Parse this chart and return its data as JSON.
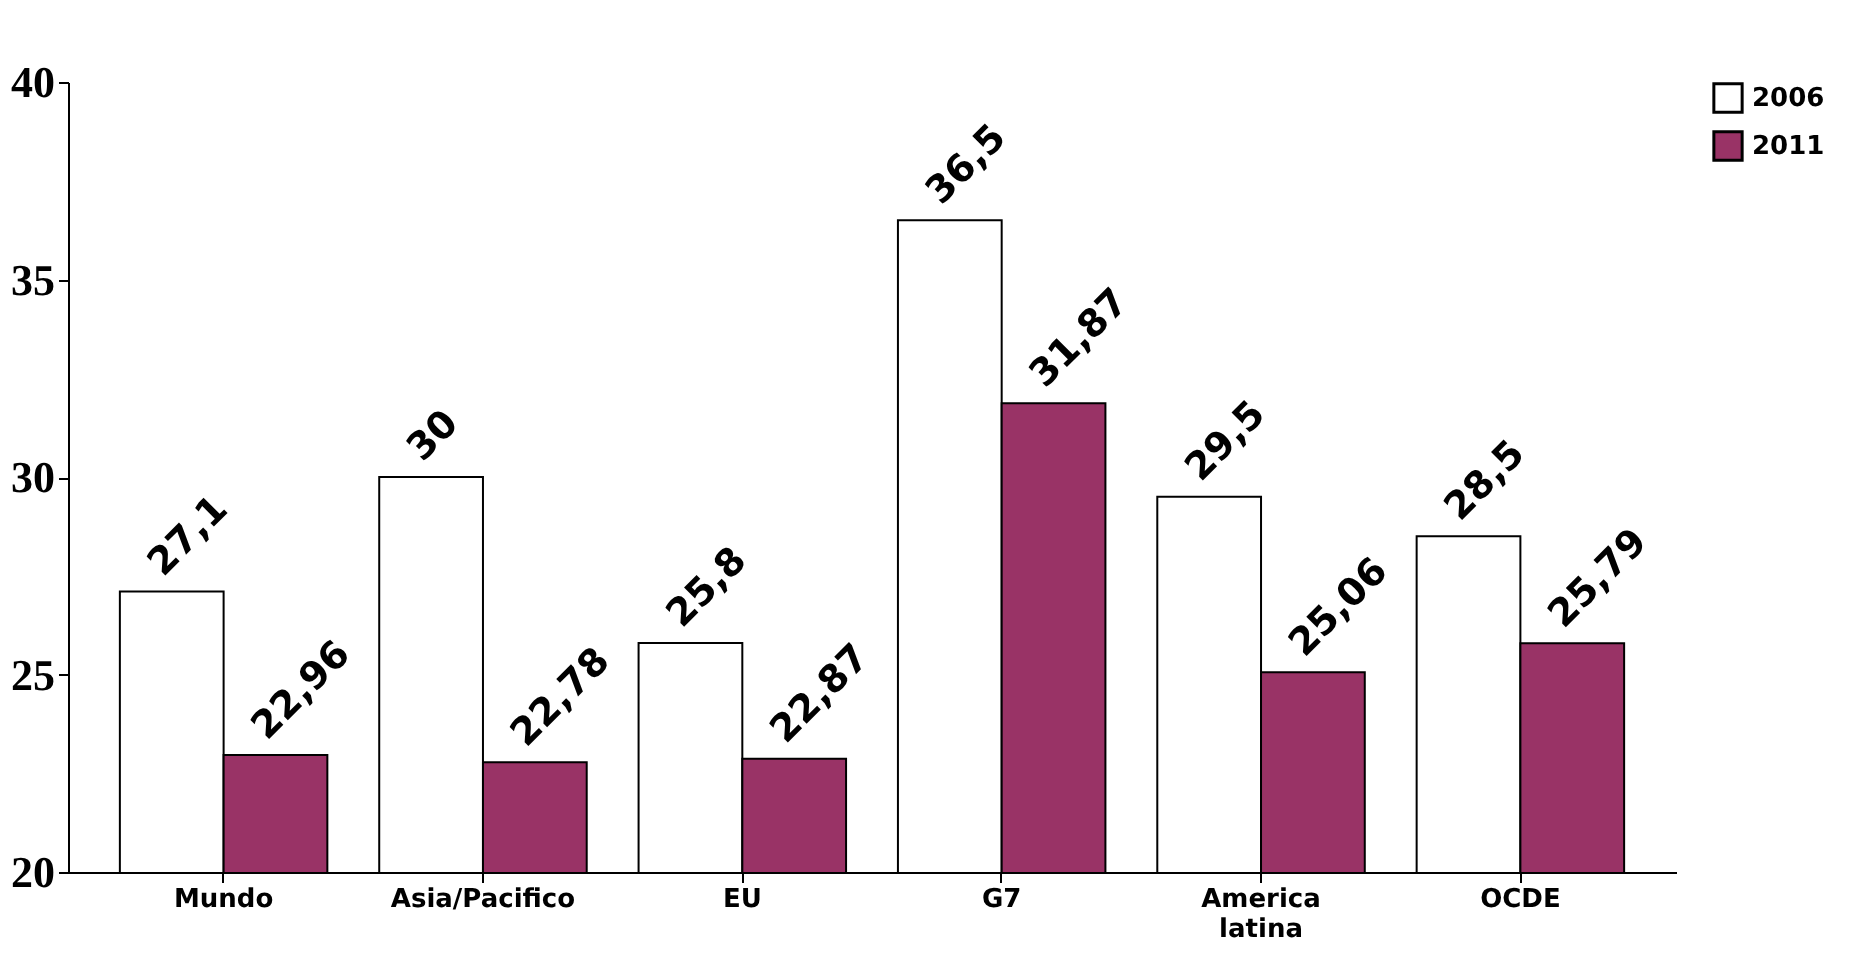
{
  "chart_data": {
    "type": "bar",
    "categories": [
      "Mundo",
      "Asia/Pacifico",
      "EU",
      "G7",
      "America latina",
      "OCDE"
    ],
    "series": [
      {
        "name": "2006",
        "color": "#ffffff",
        "values": [
          27.1,
          30,
          25.8,
          36.5,
          29.5,
          28.5
        ],
        "value_labels": [
          "27,1",
          "30",
          "25,8",
          "36,5",
          "29,5",
          "28,5"
        ]
      },
      {
        "name": "2011",
        "color": "#993366",
        "values": [
          22.96,
          22.78,
          22.87,
          31.87,
          25.06,
          25.79
        ],
        "value_labels": [
          "22,96",
          "22,78",
          "22,87",
          "31,87",
          "25,06",
          "25,79"
        ]
      }
    ],
    "ylim": [
      20,
      40
    ],
    "yticks": [
      20,
      25,
      30,
      35,
      40
    ],
    "grid": false,
    "legend": "right"
  }
}
